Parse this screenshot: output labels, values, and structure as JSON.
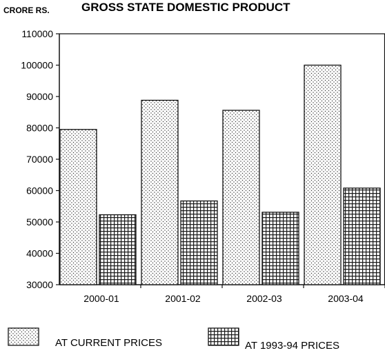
{
  "chart_data": {
    "type": "bar",
    "title": "GROSS STATE DOMESTIC PRODUCT",
    "ylabel": "CRORE RS.",
    "xlabel": "",
    "categories": [
      "2000-01",
      "2001-02",
      "2002-03",
      "2003-04"
    ],
    "series": [
      {
        "name": "AT CURRENT PRICES",
        "values": [
          79500,
          88800,
          85600,
          100000
        ],
        "pattern": "dots"
      },
      {
        "name": "AT 1993-94 PRICES",
        "values": [
          52300,
          56700,
          53100,
          60800
        ],
        "pattern": "grid"
      }
    ],
    "ylim": [
      30000,
      110000
    ],
    "yticks": [
      30000,
      40000,
      50000,
      60000,
      70000,
      80000,
      90000,
      100000,
      110000
    ],
    "grid": false,
    "legend_position": "bottom",
    "colors": {
      "bar_fill": "#ffffff",
      "bar_stroke": "#111111",
      "pattern_ink": "#222222"
    }
  }
}
